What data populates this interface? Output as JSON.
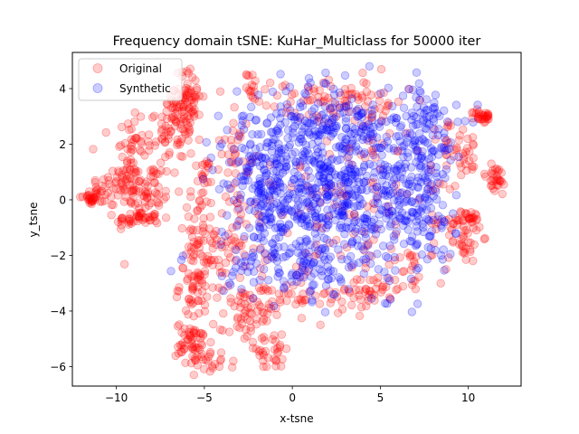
{
  "chart_data": {
    "type": "scatter",
    "title": "Frequency domain tSNE: KuHar_Multiclass for 50000 iter",
    "xlabel": "x-tsne",
    "ylabel": "y_tsne",
    "xlim": [
      -12.5,
      13.0
    ],
    "ylim": [
      -6.7,
      5.3
    ],
    "xticks": [
      -10,
      -5,
      0,
      5,
      10
    ],
    "yticks": [
      -6,
      -4,
      -2,
      0,
      2,
      4
    ],
    "xtick_labels": [
      "−10",
      "−5",
      "0",
      "5",
      "10"
    ],
    "ytick_labels": [
      "−6",
      "−4",
      "−2",
      "0",
      "2",
      "4"
    ],
    "legend_position": "upper-left",
    "series": [
      {
        "name": "Original",
        "color": "#ff0000",
        "opacity": 0.2,
        "clusters": [
          {
            "cx": -11.5,
            "cy": 0.05,
            "sx": 0.3,
            "sy": 0.12,
            "n": 25
          },
          {
            "cx": -10.4,
            "cy": 0.3,
            "sx": 0.6,
            "sy": 0.3,
            "n": 30
          },
          {
            "cx": -9.3,
            "cy": 1.4,
            "sx": 0.5,
            "sy": 0.9,
            "n": 60
          },
          {
            "cx": -8.3,
            "cy": 0.2,
            "sx": 0.8,
            "sy": 0.6,
            "n": 70
          },
          {
            "cx": -8.8,
            "cy": -0.7,
            "sx": 0.6,
            "sy": 0.15,
            "n": 35
          },
          {
            "cx": -7.2,
            "cy": 2.3,
            "sx": 0.8,
            "sy": 0.7,
            "n": 60
          },
          {
            "cx": -5.9,
            "cy": 3.7,
            "sx": 0.4,
            "sy": 0.5,
            "n": 60
          },
          {
            "cx": -6.5,
            "cy": 3.0,
            "sx": 0.4,
            "sy": 0.3,
            "n": 25
          },
          {
            "cx": -5.0,
            "cy": 0.9,
            "sx": 0.2,
            "sy": 0.3,
            "n": 15
          },
          {
            "cx": -5.4,
            "cy": -0.8,
            "sx": 0.5,
            "sy": 0.8,
            "n": 40
          },
          {
            "cx": -5.4,
            "cy": -3.0,
            "sx": 0.5,
            "sy": 0.7,
            "n": 70
          },
          {
            "cx": -5.6,
            "cy": -5.2,
            "sx": 0.5,
            "sy": 0.4,
            "n": 60
          },
          {
            "cx": -4.4,
            "cy": -5.9,
            "sx": 0.5,
            "sy": 0.2,
            "n": 15
          },
          {
            "cx": -3.6,
            "cy": -1.6,
            "sx": 0.6,
            "sy": 1.0,
            "n": 50
          },
          {
            "cx": -3.2,
            "cy": 1.7,
            "sx": 0.4,
            "sy": 0.7,
            "n": 30
          },
          {
            "cx": -2.3,
            "cy": 4.1,
            "sx": 0.15,
            "sy": 0.25,
            "n": 15
          },
          {
            "cx": -2.6,
            "cy": -4.2,
            "sx": 0.7,
            "sy": 0.6,
            "n": 50
          },
          {
            "cx": -1.2,
            "cy": -5.5,
            "sx": 0.8,
            "sy": 0.3,
            "n": 30
          },
          {
            "cx": 0.0,
            "cy": -3.4,
            "sx": 1.5,
            "sy": 0.6,
            "n": 50
          },
          {
            "cx": 1.0,
            "cy": 3.5,
            "sx": 2.0,
            "sy": 0.4,
            "n": 50
          },
          {
            "cx": 4.0,
            "cy": 3.6,
            "sx": 1.2,
            "sy": 0.6,
            "n": 40
          },
          {
            "cx": 4.5,
            "cy": -3.2,
            "sx": 0.8,
            "sy": 0.3,
            "n": 40
          },
          {
            "cx": 6.8,
            "cy": -2.6,
            "sx": 0.3,
            "sy": 0.4,
            "n": 15
          },
          {
            "cx": 9.8,
            "cy": -1.3,
            "sx": 0.5,
            "sy": 0.5,
            "n": 35
          },
          {
            "cx": 10.2,
            "cy": -0.7,
            "sx": 0.3,
            "sy": 0.15,
            "n": 20
          },
          {
            "cx": 10.8,
            "cy": 3.0,
            "sx": 0.25,
            "sy": 0.12,
            "n": 30
          },
          {
            "cx": 11.5,
            "cy": 0.7,
            "sx": 0.4,
            "sy": 0.3,
            "n": 30
          },
          {
            "cx": 10.0,
            "cy": 1.7,
            "sx": 0.5,
            "sy": 0.4,
            "n": 25
          },
          {
            "cx": 8.8,
            "cy": 0.2,
            "sx": 0.6,
            "sy": 1.5,
            "n": 40
          },
          {
            "cx": 3.0,
            "cy": 0.0,
            "sx": 3.0,
            "sy": 1.8,
            "n": 120
          }
        ]
      },
      {
        "name": "Synthetic",
        "color": "#0000ff",
        "opacity": 0.2,
        "clusters": [
          {
            "cx": 0.5,
            "cy": 0.6,
            "sx": 2.3,
            "sy": 1.5,
            "n": 330
          },
          {
            "cx": 4.2,
            "cy": 0.2,
            "sx": 2.0,
            "sy": 1.6,
            "n": 320
          },
          {
            "cx": 2.5,
            "cy": 2.6,
            "sx": 2.8,
            "sy": 0.7,
            "n": 170
          },
          {
            "cx": 7.5,
            "cy": 2.2,
            "sx": 1.0,
            "sy": 1.0,
            "n": 90
          },
          {
            "cx": 7.6,
            "cy": -0.2,
            "sx": 0.9,
            "sy": 0.9,
            "n": 70
          },
          {
            "cx": 0.2,
            "cy": -2.3,
            "sx": 2.0,
            "sy": 0.6,
            "n": 110
          },
          {
            "cx": -1.5,
            "cy": 0.0,
            "sx": 1.2,
            "sy": 1.2,
            "n": 90
          }
        ]
      }
    ]
  }
}
